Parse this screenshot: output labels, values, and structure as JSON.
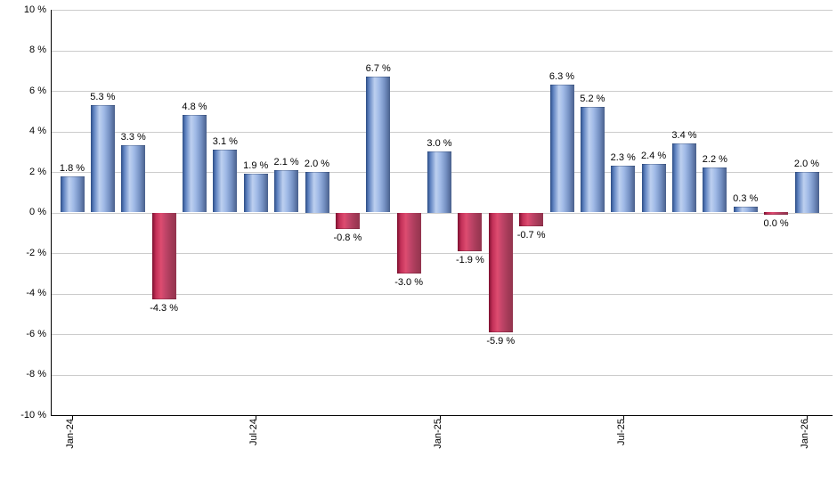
{
  "chart_data": {
    "type": "bar",
    "title": "",
    "xlabel": "",
    "ylabel": "",
    "values": [
      1.8,
      5.3,
      3.3,
      -4.3,
      4.8,
      3.1,
      1.9,
      2.1,
      2.0,
      -0.8,
      6.7,
      -3.0,
      3.0,
      -1.9,
      -5.9,
      -0.7,
      6.3,
      5.2,
      2.3,
      2.4,
      3.4,
      2.2,
      0.3,
      0.0,
      2.0
    ],
    "bar_labels": [
      "1.8 %",
      "5.3 %",
      "3.3 %",
      "-4.3 %",
      "4.8 %",
      "3.1 %",
      "1.9 %",
      "2.1 %",
      "2.0 %",
      "-0.8 %",
      "6.7 %",
      "-3.0 %",
      "3.0 %",
      "-1.9 %",
      "-5.9 %",
      "-0.7 %",
      "6.3 %",
      "5.2 %",
      "2.3 %",
      "2.4 %",
      "3.4 %",
      "2.2 %",
      "0.3 %",
      "0.0 %",
      "2.0 %"
    ],
    "x_ticks": [
      {
        "index": 0,
        "label": "Jan-24"
      },
      {
        "index": 6,
        "label": "Jul-24"
      },
      {
        "index": 12,
        "label": "Jan-25"
      },
      {
        "index": 18,
        "label": "Jul-25"
      },
      {
        "index": 24,
        "label": "Jan-26"
      }
    ],
    "y_ticks": [
      {
        "value": 10,
        "label": "10 %"
      },
      {
        "value": 8,
        "label": "8 %"
      },
      {
        "value": 6,
        "label": "6 %"
      },
      {
        "value": 4,
        "label": "4 %"
      },
      {
        "value": 2,
        "label": "2 %"
      },
      {
        "value": 0,
        "label": "0 %"
      },
      {
        "value": -2,
        "label": "-2 %"
      },
      {
        "value": -4,
        "label": "-4 %"
      },
      {
        "value": -6,
        "label": "-6 %"
      },
      {
        "value": -8,
        "label": "-8 %"
      },
      {
        "value": -10,
        "label": "-10 %"
      }
    ],
    "ylim": [
      -10,
      10
    ],
    "grid": true,
    "legend": "none",
    "colors": {
      "positive_gradient": [
        "#2C4C84",
        "#5C80BE",
        "#BDD0F0",
        "#9FB9E6",
        "#7490C2",
        "#49608C"
      ],
      "negative_gradient": [
        "#7C0F2E",
        "#C23058",
        "#DD4C70",
        "#C04468",
        "#A53B58",
        "#93344E"
      ],
      "grid": "#CCCCCC",
      "axis": "#000000",
      "label": "#000000",
      "background": "#FFFFFF"
    }
  }
}
